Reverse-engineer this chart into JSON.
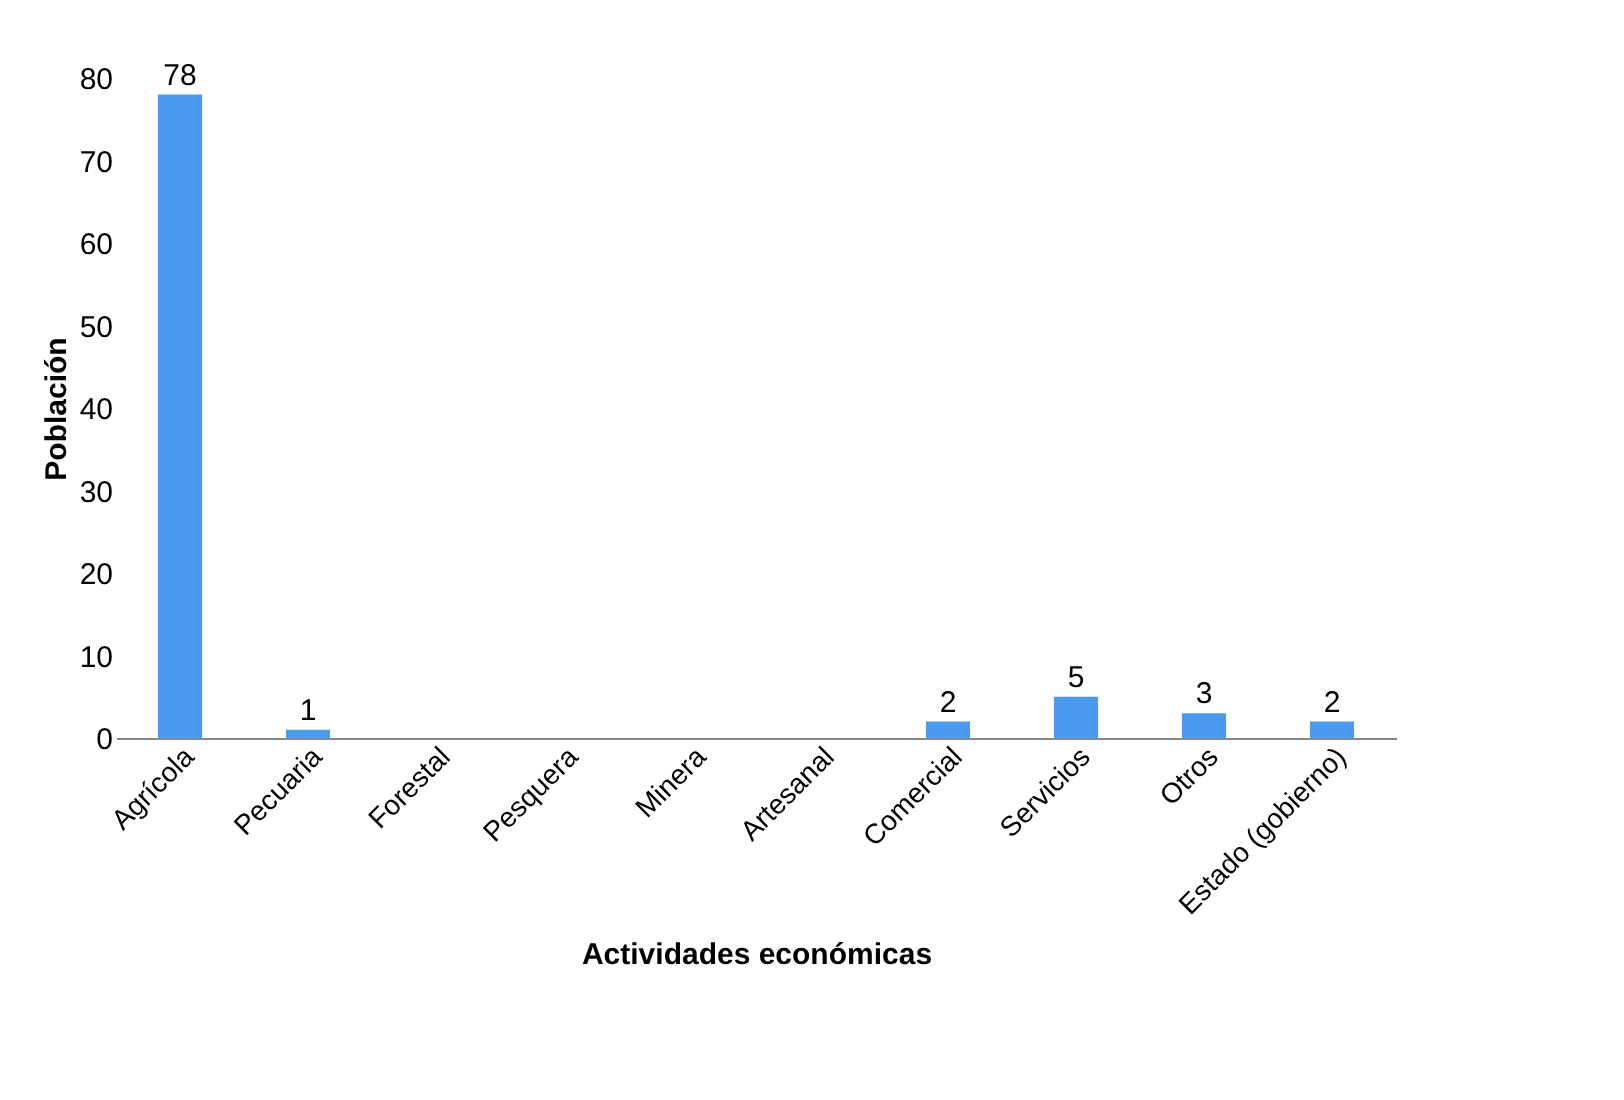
{
  "chart_data": {
    "type": "bar",
    "xlabel": "Actividades económicas",
    "ylabel": "Población",
    "categories": [
      "Agrícola",
      "Pecuaria",
      "Forestal",
      "Pesquera",
      "Minera",
      "Artesanal",
      "Comercial",
      "Servicios",
      "Otros",
      "Estado (gobierno)"
    ],
    "values": [
      78,
      1,
      null,
      null,
      null,
      null,
      2,
      5,
      3,
      2
    ],
    "color": "#4a9af0",
    "ylim": [
      0,
      80
    ],
    "yticks": [
      0,
      10,
      20,
      30,
      40,
      50,
      60,
      70,
      80
    ],
    "data_labels": true,
    "grid": false
  }
}
